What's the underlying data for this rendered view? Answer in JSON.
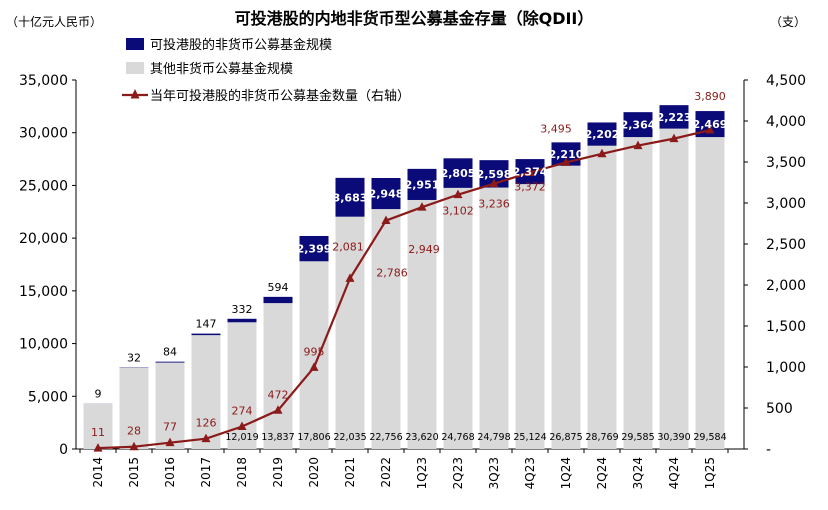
{
  "header": {
    "title": "可投港股的内地非货币型公募基金存量（除QDII）",
    "left_unit": "（十亿元人民币）",
    "right_unit": "（支）"
  },
  "legend": [
    {
      "label": "可投港股的非货币公募基金规模",
      "color": "#0a0a78",
      "kind": "bar"
    },
    {
      "label": "其他非货币公募基金规模",
      "color": "#d9d9d9",
      "kind": "bar"
    },
    {
      "label": "当年可投港股的非货币公募基金数量（右轴）",
      "color": "#8b1a1a",
      "kind": "line"
    }
  ],
  "colors": {
    "hk_fund": "#0a0a78",
    "other_fund": "#d9d9d9",
    "count_line": "#8b1a1a"
  },
  "chart_data": {
    "type": "bar",
    "stacked": true,
    "categories": [
      "2014",
      "2015",
      "2016",
      "2017",
      "2018",
      "2019",
      "2020",
      "2021",
      "2022",
      "1Q23",
      "2Q23",
      "3Q23",
      "4Q23",
      "1Q24",
      "2Q24",
      "3Q24",
      "4Q24",
      "1Q25"
    ],
    "y_left": {
      "range": [
        0,
        35000
      ],
      "ticks": [
        "0",
        "5,000",
        "10,000",
        "15,000",
        "20,000",
        "25,000",
        "30,000",
        "35,000"
      ]
    },
    "y_right": {
      "range": [
        0,
        4500
      ],
      "ticks": [
        "-",
        "500",
        "1,000",
        "1,500",
        "2,000",
        "2,500",
        "3,000",
        "3,500",
        "4,000",
        "4,500"
      ]
    },
    "series": [
      {
        "name": "其他非货币公募基金规模",
        "axis": "left",
        "values": [
          4300,
          7700,
          8200,
          10800,
          12019,
          13837,
          17806,
          22035,
          22756,
          23620,
          24768,
          24798,
          25124,
          26875,
          28769,
          29585,
          30390,
          29584
        ],
        "labels": [
          "",
          "",
          "",
          "",
          "12,019",
          "13,837",
          "17,806",
          "22,035",
          "22,756",
          "23,620",
          "24,768",
          "24,798",
          "25,124",
          "26,875",
          "28,769",
          "29,585",
          "30,390",
          "29,584"
        ]
      },
      {
        "name": "可投港股的非货币公募基金规模",
        "axis": "left",
        "values": [
          9,
          32,
          84,
          147,
          332,
          594,
          2399,
          3683,
          2948,
          2951,
          2805,
          2598,
          2374,
          2210,
          2202,
          2364,
          2223,
          2469
        ],
        "labels": [
          "9",
          "32",
          "84",
          "147",
          "332",
          "594",
          "2,399",
          "3,683",
          "2,948",
          "2,951",
          "2,805",
          "2,598",
          "2,374",
          "2,210",
          "2,202",
          "2,364",
          "2,223",
          "2,469"
        ]
      },
      {
        "name": "当年可投港股的非货币公募基金数量（右轴）",
        "axis": "right",
        "type": "line",
        "values": [
          11,
          28,
          77,
          126,
          274,
          472,
          995,
          2081,
          2786,
          2949,
          3102,
          3236,
          3372,
          3495,
          3600,
          3700,
          3785,
          3890
        ],
        "labels": [
          "11",
          "28",
          "77",
          "126",
          "274",
          "472",
          "995",
          "2,081",
          "2,786",
          "2,949",
          "3,102",
          "3,236",
          "3,372",
          "3,495",
          "",
          "",
          "",
          "3,890"
        ]
      }
    ]
  }
}
